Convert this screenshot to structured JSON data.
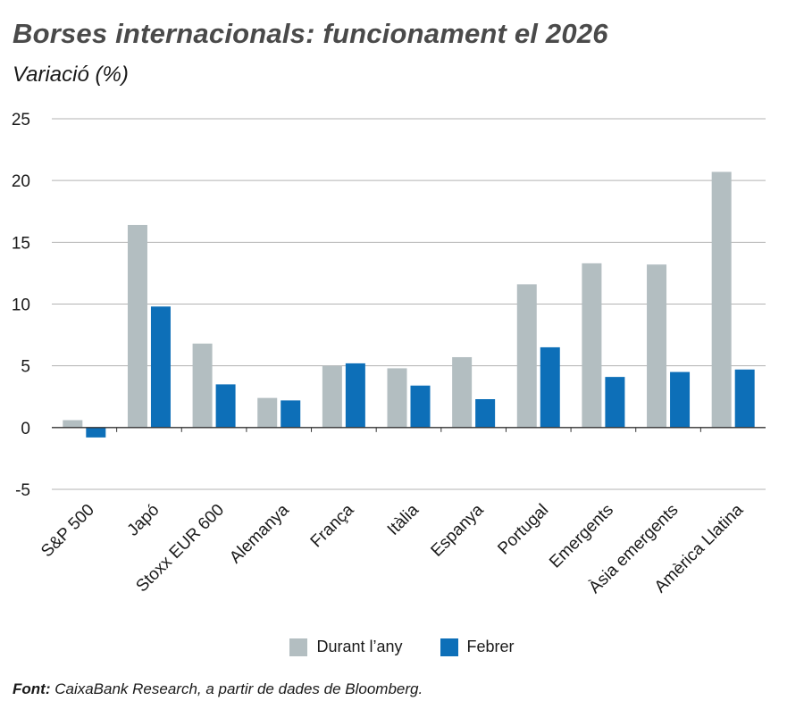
{
  "title": "Borses internacionals: funcionament el 2026",
  "subtitle": "Variació (%)",
  "source": {
    "label": "Font:",
    "text": " CaixaBank Research, a partir de dades de Bloomberg."
  },
  "colors": {
    "series_1": "#b3bec1",
    "series_2": "#0d6fb8",
    "grid": "#b3b3b3",
    "axis": "#333333"
  },
  "chart_data": {
    "type": "bar",
    "categories": [
      "S&P 500",
      "Japó",
      "Stoxx EUR 600",
      "Alemanya",
      "França",
      "Itàlia",
      "Espanya",
      "Portugal",
      "Emergents",
      "Àsia emergents",
      "Amèrica Llatina"
    ],
    "series": [
      {
        "name": "Durant l’any",
        "values": [
          0.6,
          16.4,
          6.8,
          2.4,
          5.0,
          4.8,
          5.7,
          11.6,
          13.3,
          13.2,
          20.7
        ]
      },
      {
        "name": "Febrer",
        "values": [
          -0.8,
          9.8,
          3.5,
          2.2,
          5.2,
          3.4,
          2.3,
          6.5,
          4.1,
          4.5,
          4.7
        ]
      }
    ],
    "ylim": [
      -5,
      25
    ],
    "yticks": [
      -5,
      0,
      5,
      10,
      15,
      20,
      25
    ],
    "grid": true,
    "legend_position": "bottom"
  }
}
